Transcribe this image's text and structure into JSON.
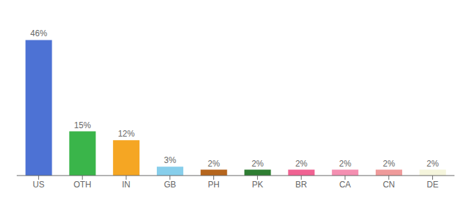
{
  "chart_data": {
    "type": "bar",
    "categories": [
      "US",
      "OTH",
      "IN",
      "GB",
      "PH",
      "PK",
      "BR",
      "CA",
      "CN",
      "DE"
    ],
    "values": [
      46,
      15,
      12,
      3,
      2,
      2,
      2,
      2,
      2,
      2
    ],
    "value_labels": [
      "46%",
      "15%",
      "12%",
      "3%",
      "2%",
      "2%",
      "2%",
      "2%",
      "2%",
      "2%"
    ],
    "colors": [
      "#4d72d4",
      "#3ab54a",
      "#f5a623",
      "#87ceeb",
      "#b5651d",
      "#2e7d32",
      "#f06292",
      "#f48fb1",
      "#ef9a9a",
      "#f5f5dc"
    ],
    "ylim": [
      0,
      52
    ],
    "data_labels": true,
    "tick_labels": "x",
    "grid": false
  }
}
